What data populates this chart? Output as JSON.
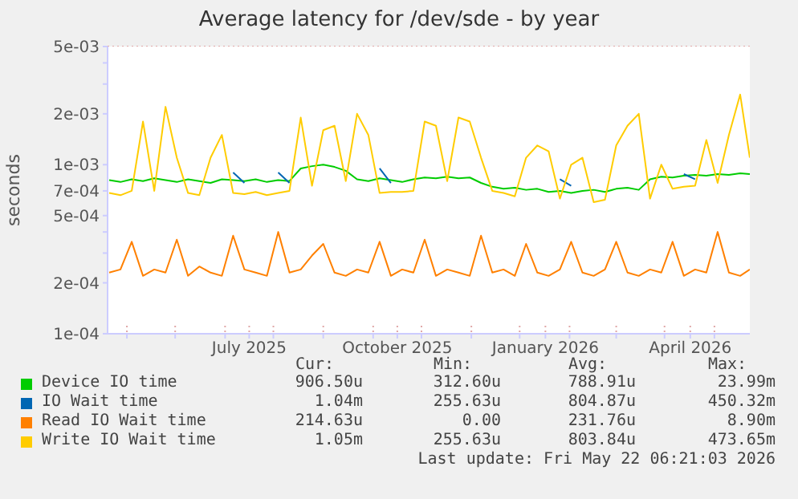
{
  "chart_data": {
    "type": "line",
    "title": "Average latency for /dev/sde - by year",
    "ylabel": "seconds",
    "log": true,
    "grid": true,
    "legend": "bottom",
    "marker": "none",
    "line_style": "solid",
    "xlim": [
      "2025-04-04",
      "2026-05-08"
    ],
    "xticks": [
      {
        "value": "2025-04-16",
        "label": null
      },
      {
        "value": "2025-05-16",
        "label": null
      },
      {
        "value": "2025-06-16",
        "label": null
      },
      {
        "value": "2025-07-01",
        "label": "July 2025"
      },
      {
        "value": "2025-07-16",
        "label": null
      },
      {
        "value": "2025-08-16",
        "label": null
      },
      {
        "value": "2025-09-16",
        "label": null
      },
      {
        "value": "2025-10-01",
        "label": "October 2025"
      },
      {
        "value": "2025-10-16",
        "label": null
      },
      {
        "value": "2025-11-16",
        "label": null
      },
      {
        "value": "2025-12-16",
        "label": null
      },
      {
        "value": "2026-01-01",
        "label": "January 2026"
      },
      {
        "value": "2026-01-16",
        "label": null
      },
      {
        "value": "2026-02-14",
        "label": null
      },
      {
        "value": "2026-03-16",
        "label": null
      },
      {
        "value": "2026-04-01",
        "label": "April 2026"
      },
      {
        "value": "2026-04-16",
        "label": null
      }
    ],
    "ylim": [
      0.0001,
      0.005
    ],
    "yticks": [
      {
        "value": 0.0001,
        "label": "1e-04"
      },
      {
        "value": 0.0002,
        "label": "2e-04"
      },
      {
        "value": 0.0003,
        "label": null
      },
      {
        "value": 0.0004,
        "label": null
      },
      {
        "value": 0.0005,
        "label": "5e-04"
      },
      {
        "value": 0.0007,
        "label": "7e-04"
      },
      {
        "value": 0.001,
        "label": "1e-03"
      },
      {
        "value": 0.002,
        "label": "2e-03"
      },
      {
        "value": 0.003,
        "label": null
      },
      {
        "value": 0.004,
        "label": null
      },
      {
        "value": 0.005,
        "label": "5e-03"
      }
    ],
    "x": [
      "2025-04-05",
      "2025-04-12",
      "2025-04-19",
      "2025-04-26",
      "2025-05-03",
      "2025-05-10",
      "2025-05-17",
      "2025-05-24",
      "2025-05-31",
      "2025-06-07",
      "2025-06-14",
      "2025-06-21",
      "2025-06-28",
      "2025-07-05",
      "2025-07-12",
      "2025-07-19",
      "2025-07-26",
      "2025-08-02",
      "2025-08-09",
      "2025-08-16",
      "2025-08-23",
      "2025-08-30",
      "2025-09-06",
      "2025-09-13",
      "2025-09-20",
      "2025-09-27",
      "2025-10-04",
      "2025-10-11",
      "2025-10-18",
      "2025-10-25",
      "2025-11-01",
      "2025-11-08",
      "2025-11-15",
      "2025-11-22",
      "2025-11-29",
      "2025-12-06",
      "2025-12-13",
      "2025-12-20",
      "2025-12-27",
      "2026-01-03",
      "2026-01-10",
      "2026-01-17",
      "2026-01-24",
      "2026-01-31",
      "2026-02-07",
      "2026-02-14",
      "2026-02-21",
      "2026-02-28",
      "2026-03-07",
      "2026-03-14",
      "2026-03-21",
      "2026-03-28",
      "2026-04-04",
      "2026-04-11",
      "2026-04-18",
      "2026-04-25",
      "2026-05-02",
      "2026-05-08"
    ],
    "series": [
      {
        "name": "Device IO time",
        "color": "#00cc00",
        "values": [
          0.00081,
          0.00079,
          0.00082,
          0.0008,
          0.00083,
          0.00081,
          0.00079,
          0.00082,
          0.0008,
          0.00078,
          0.00082,
          0.00081,
          0.0008,
          0.00082,
          0.00079,
          0.00081,
          0.0008,
          0.00095,
          0.00098,
          0.001,
          0.00097,
          0.00092,
          0.00082,
          0.0008,
          0.00083,
          0.00081,
          0.00079,
          0.00082,
          0.00084,
          0.00083,
          0.00085,
          0.00083,
          0.00084,
          0.00078,
          0.00074,
          0.00072,
          0.00073,
          0.00071,
          0.00072,
          0.00069,
          0.0007,
          0.00068,
          0.0007,
          0.00071,
          0.00069,
          0.00072,
          0.00073,
          0.00071,
          0.00082,
          0.00085,
          0.00084,
          0.00086,
          0.00087,
          0.00086,
          0.00088,
          0.00087,
          0.00089,
          0.00088
        ]
      },
      {
        "name": "IO Wait time",
        "color": "#0066b3",
        "values": [
          null,
          null,
          null,
          null,
          null,
          null,
          null,
          null,
          null,
          null,
          null,
          0.0009,
          0.00078,
          null,
          null,
          0.0009,
          0.00078,
          null,
          null,
          null,
          null,
          null,
          null,
          null,
          0.00095,
          0.00078,
          null,
          null,
          null,
          null,
          null,
          null,
          null,
          null,
          null,
          null,
          null,
          null,
          null,
          null,
          0.00082,
          0.00075,
          null,
          null,
          null,
          null,
          null,
          null,
          null,
          null,
          null,
          0.00088,
          0.00082,
          null,
          null,
          null,
          null,
          null
        ]
      },
      {
        "name": "Read IO Wait time",
        "color": "#ff8000",
        "values": [
          0.00023,
          0.00024,
          0.00035,
          0.00022,
          0.00024,
          0.00023,
          0.00036,
          0.00022,
          0.00025,
          0.00023,
          0.00022,
          0.00038,
          0.00024,
          0.00023,
          0.00022,
          0.0004,
          0.00023,
          0.00024,
          0.00029,
          0.00034,
          0.00023,
          0.00022,
          0.00024,
          0.00023,
          0.00035,
          0.00022,
          0.00024,
          0.00023,
          0.00036,
          0.00022,
          0.00024,
          0.00023,
          0.00022,
          0.00038,
          0.00023,
          0.00024,
          0.00022,
          0.00034,
          0.00023,
          0.00022,
          0.00024,
          0.00035,
          0.00023,
          0.00022,
          0.00024,
          0.00035,
          0.00023,
          0.00022,
          0.00024,
          0.00023,
          0.00035,
          0.00022,
          0.00024,
          0.00023,
          0.0004,
          0.00023,
          0.00022,
          0.00024
        ]
      },
      {
        "name": "Write IO Wait time",
        "color": "#ffcc00",
        "values": [
          0.00068,
          0.00066,
          0.0007,
          0.0018,
          0.0007,
          0.0022,
          0.0011,
          0.00068,
          0.00066,
          0.0011,
          0.0015,
          0.00068,
          0.00067,
          0.00069,
          0.00066,
          0.00068,
          0.0007,
          0.0019,
          0.00075,
          0.0016,
          0.0017,
          0.0008,
          0.002,
          0.0015,
          0.00068,
          0.00069,
          0.00069,
          0.0007,
          0.0018,
          0.0017,
          0.0008,
          0.0019,
          0.0018,
          0.0011,
          0.0007,
          0.00068,
          0.00065,
          0.0011,
          0.0013,
          0.0012,
          0.00063,
          0.001,
          0.0011,
          0.0006,
          0.00062,
          0.0013,
          0.0017,
          0.002,
          0.00063,
          0.001,
          0.00072,
          0.00074,
          0.00075,
          0.0014,
          0.00078,
          0.0015,
          0.0026,
          0.0011
        ]
      }
    ],
    "annotations": [
      "Cur:",
      "Min:",
      "Avg:",
      "Max:",
      "906.50u",
      "312.60u",
      "788.91u",
      "23.99m",
      "1.04m",
      "255.63u",
      "804.87u",
      "450.32m",
      "214.63u",
      "0.00",
      "231.76u",
      "8.90m",
      "1.05m",
      "255.63u",
      "803.84u",
      "473.65m",
      "Last update: Fri May 22 06:21:03 2026"
    ]
  }
}
